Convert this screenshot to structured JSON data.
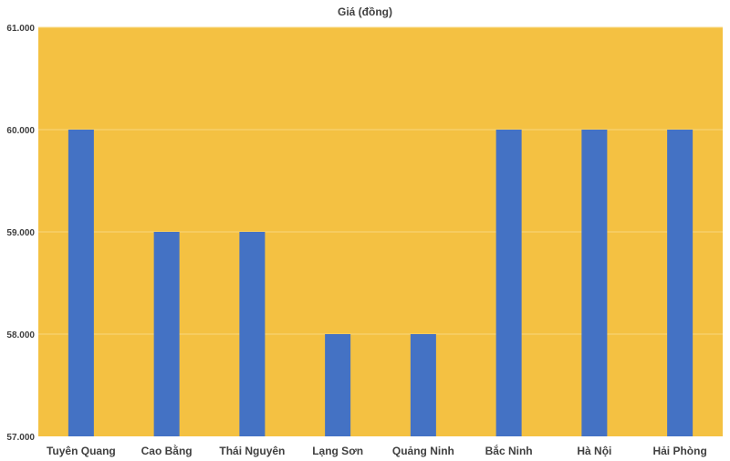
{
  "chart_data": {
    "type": "bar",
    "title": "Giá (đồng)",
    "xlabel": "",
    "ylabel": "",
    "categories": [
      "Tuyên Quang",
      "Cao Bằng",
      "Thái Nguyên",
      "Lạng Sơn",
      "Quảng Ninh",
      "Bắc Ninh",
      "Hà Nội",
      "Hải Phòng"
    ],
    "values": [
      60000,
      59000,
      59000,
      58000,
      58000,
      60000,
      60000,
      60000
    ],
    "ylim": [
      57000,
      61000
    ],
    "yticks": [
      57000,
      58000,
      59000,
      60000,
      61000
    ],
    "ytick_labels": [
      "57.000",
      "58.000",
      "59.000",
      "60.000",
      "61.000"
    ],
    "grid": true,
    "legend": "none",
    "colors": {
      "bar": "#4472C4",
      "plot_background": "#F4C142",
      "gridline": "#F7D77E",
      "text": "#404040"
    }
  }
}
